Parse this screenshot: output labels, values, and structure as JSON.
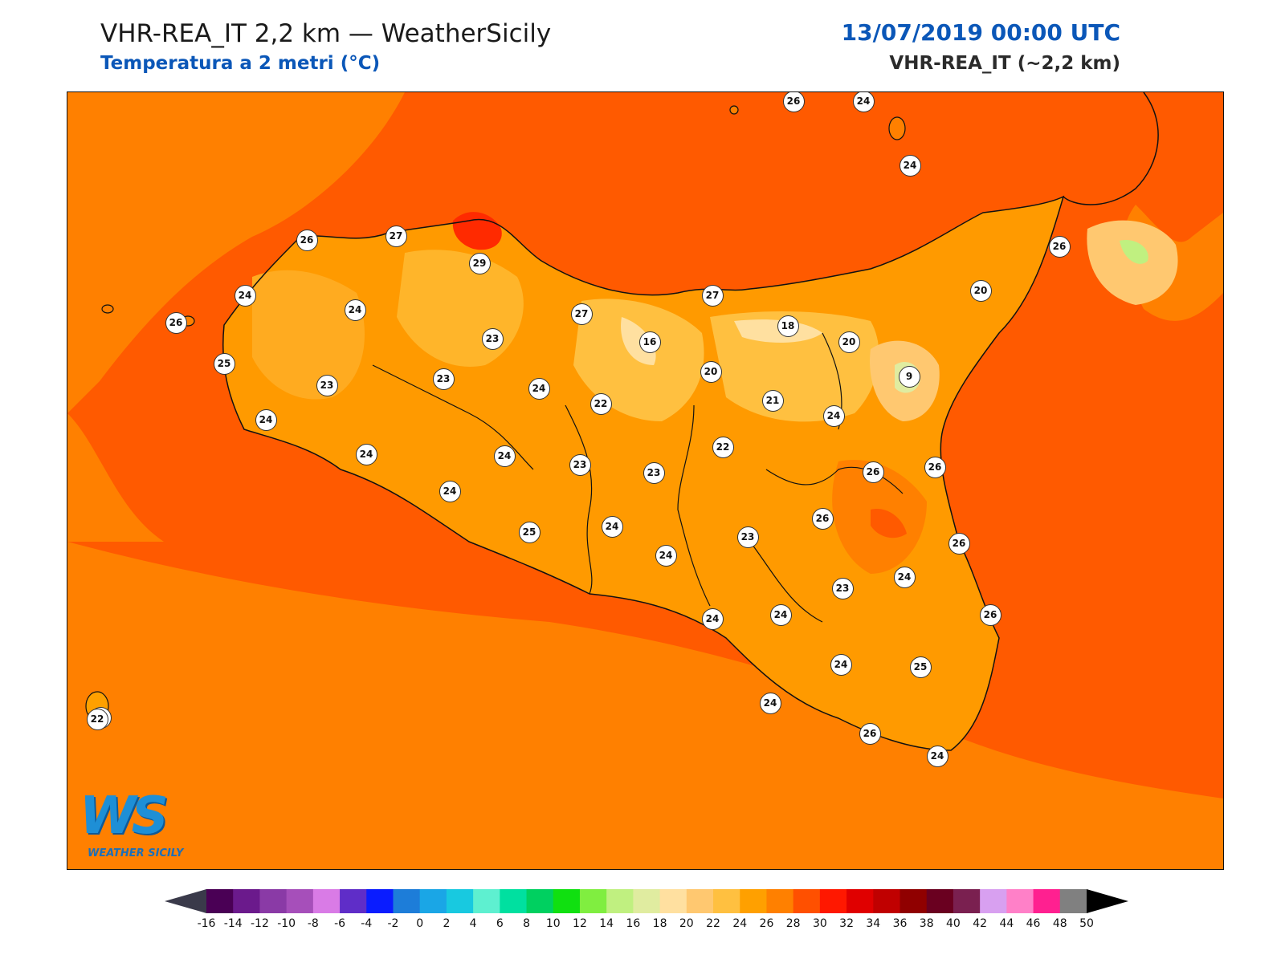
{
  "header": {
    "title": "VHR-REA_IT 2,2 km — WeatherSicily",
    "subtitle": "Temperatura a 2 metri (°C)",
    "datetime": "13/07/2019 00:00 UTC",
    "model": "VHR-REA_IT (~2,2 km)"
  },
  "logo": {
    "mark": "WS",
    "text": "WEATHER SICILY"
  },
  "stations": [
    {
      "v": "26"
    },
    {
      "v": "24"
    },
    {
      "v": "24"
    },
    {
      "v": "26"
    },
    {
      "v": "27"
    },
    {
      "v": "26"
    },
    {
      "v": "29"
    },
    {
      "v": "27"
    },
    {
      "v": "24"
    },
    {
      "v": "24"
    },
    {
      "v": "26"
    },
    {
      "v": "22"
    },
    {
      "v": "20"
    },
    {
      "v": "27"
    },
    {
      "v": "23"
    },
    {
      "v": "16"
    },
    {
      "v": "18"
    },
    {
      "v": "20"
    },
    {
      "v": "25"
    },
    {
      "v": "23"
    },
    {
      "v": "23"
    },
    {
      "v": "20"
    },
    {
      "v": "9"
    },
    {
      "v": "24"
    },
    {
      "v": "22"
    },
    {
      "v": "21"
    },
    {
      "v": "24"
    },
    {
      "v": "24"
    },
    {
      "v": "24"
    },
    {
      "v": "24"
    },
    {
      "v": "22"
    },
    {
      "v": "23"
    },
    {
      "v": "23"
    },
    {
      "v": "26"
    },
    {
      "v": "26"
    },
    {
      "v": "24"
    },
    {
      "v": "26"
    },
    {
      "v": "25"
    },
    {
      "v": "24"
    },
    {
      "v": "24"
    },
    {
      "v": "23"
    },
    {
      "v": "26"
    },
    {
      "v": "24"
    },
    {
      "v": "23"
    },
    {
      "v": "26"
    },
    {
      "v": "24"
    },
    {
      "v": "24"
    },
    {
      "v": "24"
    },
    {
      "v": "25"
    },
    {
      "v": "24"
    },
    {
      "v": "26"
    },
    {
      "v": "24"
    },
    {
      "v": "22"
    }
  ],
  "colorbar": {
    "labels": [
      "-16",
      "-14",
      "-12",
      "-10",
      "-8",
      "-6",
      "-4",
      "-2",
      "0",
      "2",
      "4",
      "6",
      "8",
      "10",
      "12",
      "14",
      "16",
      "18",
      "20",
      "22",
      "24",
      "26",
      "28",
      "30",
      "32",
      "34",
      "36",
      "38",
      "40",
      "42",
      "44",
      "46",
      "48",
      "50"
    ],
    "colors": [
      "#4a0055",
      "#6b1a8c",
      "#8a3aa6",
      "#a64fba",
      "#d97be6",
      "#5f2dc8",
      "#0a1cff",
      "#1d7dd9",
      "#1aa6e6",
      "#18c9e0",
      "#5ef0d0",
      "#00e0a0",
      "#00d060",
      "#10e010",
      "#80ee40",
      "#c0f080",
      "#e0eca0",
      "#ffe0a0",
      "#ffc870",
      "#ffc040",
      "#ffa000",
      "#ff8000",
      "#ff5000",
      "#ff1800",
      "#e00000",
      "#c00000",
      "#900000",
      "#6a0020",
      "#7a2050",
      "#d8a0f0",
      "#ff80c8",
      "#ff2090",
      "#808080",
      "#404040"
    ],
    "under_color": "#3a3a4a",
    "over_color": "#000000"
  }
}
